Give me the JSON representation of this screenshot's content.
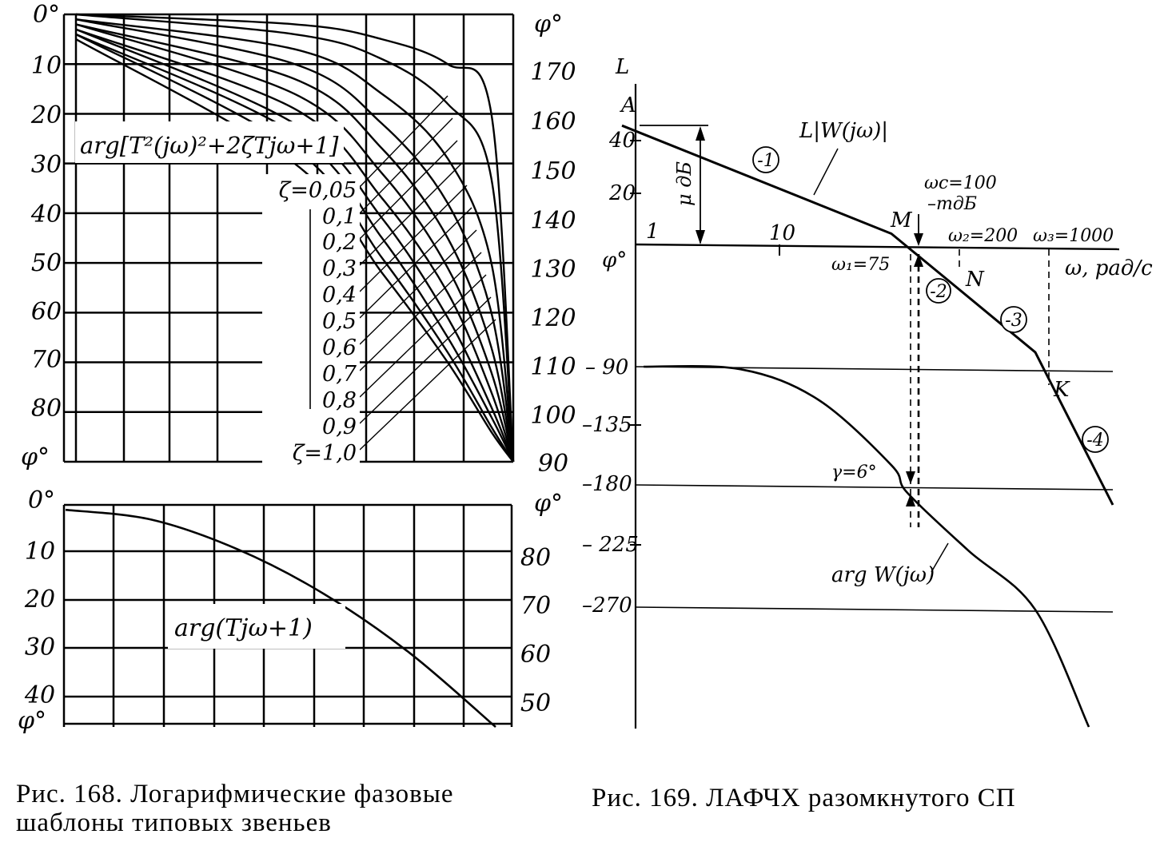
{
  "chart_data": [
    {
      "id": "fig168_top",
      "type": "line",
      "left_axis_ticks": [
        "0°",
        "10",
        "20",
        "30",
        "40",
        "50",
        "60",
        "70",
        "80"
      ],
      "left_axis_label": "φ°",
      "right_axis_label": "φ°",
      "right_axis_ticks": [
        "170",
        "160",
        "150",
        "140",
        "130",
        "120",
        "110",
        "100",
        "90"
      ],
      "annotation": "arg[T²(jω)²+2ζTjω+1]",
      "series": [
        {
          "name": "ζ=0,05",
          "x": [
            0.0,
            0.5,
            0.7,
            0.85,
            0.95,
            1.0
          ],
          "y": [
            180,
            178,
            175,
            170,
            160,
            90
          ]
        },
        {
          "name": "0,1",
          "x": [
            0.0,
            0.5,
            0.7,
            0.85,
            0.95,
            1.0
          ],
          "y": [
            180,
            176,
            171,
            162,
            147,
            90
          ]
        },
        {
          "name": "0,2",
          "x": [
            0.0,
            0.5,
            0.7,
            0.85,
            0.95,
            1.0
          ],
          "y": [
            179,
            173,
            164,
            151,
            130,
            90
          ]
        },
        {
          "name": "0,3",
          "x": [
            0.0,
            0.5,
            0.7,
            0.85,
            0.95,
            1.0
          ],
          "y": [
            179,
            170,
            158,
            142,
            120,
            90
          ]
        },
        {
          "name": "0,4",
          "x": [
            0.0,
            0.5,
            0.7,
            0.85,
            0.95,
            1.0
          ],
          "y": [
            178,
            167,
            153,
            135,
            113,
            90
          ]
        },
        {
          "name": "0,5",
          "x": [
            0.0,
            0.5,
            0.7,
            0.85,
            0.95,
            1.0
          ],
          "y": [
            178,
            164,
            148,
            129,
            108,
            90
          ]
        },
        {
          "name": "0,6",
          "x": [
            0.0,
            0.5,
            0.7,
            0.85,
            0.95,
            1.0
          ],
          "y": [
            177,
            161,
            143,
            124,
            104,
            90
          ]
        },
        {
          "name": "0,7",
          "x": [
            0.0,
            0.5,
            0.7,
            0.85,
            0.95,
            1.0
          ],
          "y": [
            177,
            158,
            139,
            119,
            101,
            90
          ]
        },
        {
          "name": "0,8",
          "x": [
            0.0,
            0.5,
            0.7,
            0.85,
            0.95,
            1.0
          ],
          "y": [
            176,
            156,
            135,
            115,
            99,
            90
          ]
        },
        {
          "name": "0,9",
          "x": [
            0.0,
            0.5,
            0.7,
            0.85,
            0.95,
            1.0
          ],
          "y": [
            176,
            153,
            131,
            112,
            97,
            90
          ]
        },
        {
          "name": "ζ=1,0",
          "x": [
            0.0,
            0.5,
            0.7,
            0.85,
            0.95,
            1.0
          ],
          "y": [
            175,
            150,
            128,
            110,
            96,
            90
          ]
        }
      ],
      "ylim": [
        90,
        180
      ]
    },
    {
      "id": "fig168_bottom",
      "type": "line",
      "left_axis_ticks": [
        "0°",
        "10",
        "20",
        "30",
        "40"
      ],
      "left_axis_label": "φ°",
      "right_axis_label": "φ°",
      "right_axis_ticks": [
        "80",
        "70",
        "60",
        "50"
      ],
      "annotation": "arg(Tjω+1)",
      "series": [
        {
          "name": "",
          "x": [
            0.0,
            0.2,
            0.4,
            0.6,
            0.8,
            1.0
          ],
          "y": [
            89,
            87,
            81,
            72,
            60,
            45
          ]
        }
      ],
      "ylim": [
        45,
        90
      ]
    },
    {
      "id": "fig169",
      "type": "line",
      "amplitude_axis": {
        "label": "L",
        "ticks": [
          "40",
          "20"
        ],
        "point_label": "A"
      },
      "phase_axis": {
        "label": "φ°",
        "ticks": [
          "– 90",
          "–135",
          "–180",
          "– 225",
          "–270"
        ]
      },
      "frequency_axis": {
        "label": "ω, рад/с",
        "ticks": [
          "1",
          "10"
        ]
      },
      "amplitude_series": {
        "name": "L|W(jω)|",
        "x": [
          1,
          75,
          100,
          200,
          1000,
          3000
        ],
        "y": [
          46,
          5,
          0,
          -12,
          -40,
          -82
        ]
      },
      "phase_series": {
        "name": "arg W(jω)",
        "x": [
          1,
          5,
          20,
          75,
          100,
          300,
          1000,
          3000
        ],
        "y": [
          -90,
          -92,
          -115,
          -165,
          -186,
          -230,
          -275,
          -330
        ]
      },
      "labels": {
        "asymptotes": [
          "-1",
          "-2",
          "-3",
          "-4"
        ],
        "points": [
          "M",
          "N",
          "K"
        ],
        "omega_c": "ωc=100",
        "m_db": "–mдБ",
        "omega2": "ω₂=200",
        "omega3": "ω₃=1000",
        "omega1": "ω₁=75",
        "mu_db": "μ дБ",
        "gamma": "γ=6°"
      }
    }
  ],
  "captions": {
    "fig168_line1": "Рис. 168. Логарифмические фазовые",
    "fig168_line2": "шаблоны типовых звеньев",
    "fig169": "Рис. 169. ЛАФЧХ разомкнутого СП"
  }
}
